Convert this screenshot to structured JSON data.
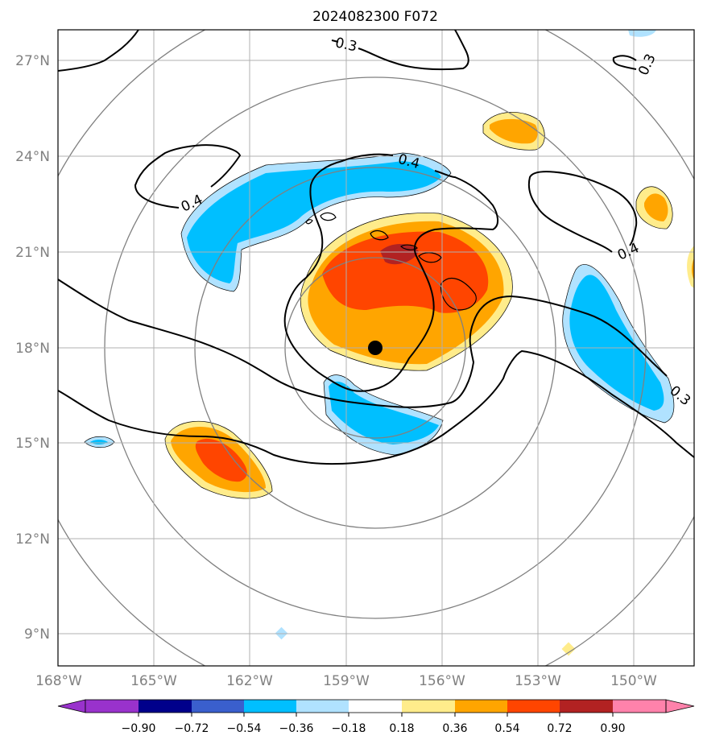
{
  "chart_data": {
    "type": "heatmap",
    "title": "2024082300 F072",
    "xlabel": "",
    "ylabel": "",
    "xlim": [
      -168,
      -148
    ],
    "ylim": [
      8,
      28
    ],
    "x_ticks": [
      "168°W",
      "165°W",
      "162°W",
      "159°W",
      "156°W",
      "153°W",
      "150°W"
    ],
    "y_ticks": [
      "27°N",
      "24°N",
      "21°N",
      "18°N",
      "15°N",
      "12°N",
      "9°N"
    ],
    "grid": true,
    "center_marker": {
      "lon": -158.1,
      "lat": 18.0
    },
    "range_rings": {
      "center": [
        -158.1,
        18.0
      ],
      "radii_deg": [
        2.8,
        5.6,
        8.4,
        11.2
      ]
    },
    "colorbar": {
      "ticks": [
        "−0.90",
        "−0.72",
        "−0.54",
        "−0.36",
        "−0.18",
        "0.18",
        "0.36",
        "0.54",
        "0.72",
        "0.90"
      ],
      "colors": [
        "#9932cc",
        "#00008b",
        "#3a5fcd",
        "#00bfff",
        "#b0e2ff",
        "#ffffff",
        "#ffec8b",
        "#ffa500",
        "#ff4500",
        "#b22222",
        "#ff82ab"
      ],
      "extend": "both"
    },
    "contour_labels": [
      "0.3",
      "0.4",
      "0.4",
      "0.4",
      "0.3",
      "0.3"
    ],
    "contour_levels": [
      0.3,
      0.4
    ],
    "filled_regions": [
      {
        "name": "central-positive",
        "levels": [
          0.18,
          0.36,
          0.54,
          0.72
        ],
        "lon": [
          -159.5,
          -154.5
        ],
        "lat": [
          17.5,
          22.0
        ]
      },
      {
        "name": "north-negative",
        "levels": [
          -0.18,
          -0.36
        ],
        "lon": [
          -162.5,
          -156.0
        ],
        "lat": [
          19.9,
          23.5
        ]
      },
      {
        "name": "south-negative",
        "levels": [
          -0.18,
          -0.36
        ],
        "lon": [
          -158.8,
          -156.0
        ],
        "lat": [
          15.3,
          17.1
        ]
      },
      {
        "name": "east-negative",
        "levels": [
          -0.18,
          -0.36
        ],
        "lon": [
          -152.3,
          -149.3
        ],
        "lat": [
          15.0,
          20.2
        ]
      },
      {
        "name": "southwest-positive",
        "levels": [
          0.18,
          0.36,
          0.54
        ],
        "lon": [
          -164.0,
          -160.9
        ],
        "lat": [
          13.3,
          15.8
        ]
      },
      {
        "name": "northeast-positive",
        "levels": [
          0.18,
          0.36
        ],
        "lon": [
          -154.7,
          -152.9
        ],
        "lat": [
          24.2,
          25.4
        ]
      },
      {
        "name": "east-positive",
        "levels": [
          0.18,
          0.36
        ],
        "lon": [
          -150.1,
          -149.0
        ],
        "lat": [
          21.9,
          23.1
        ]
      }
    ]
  }
}
